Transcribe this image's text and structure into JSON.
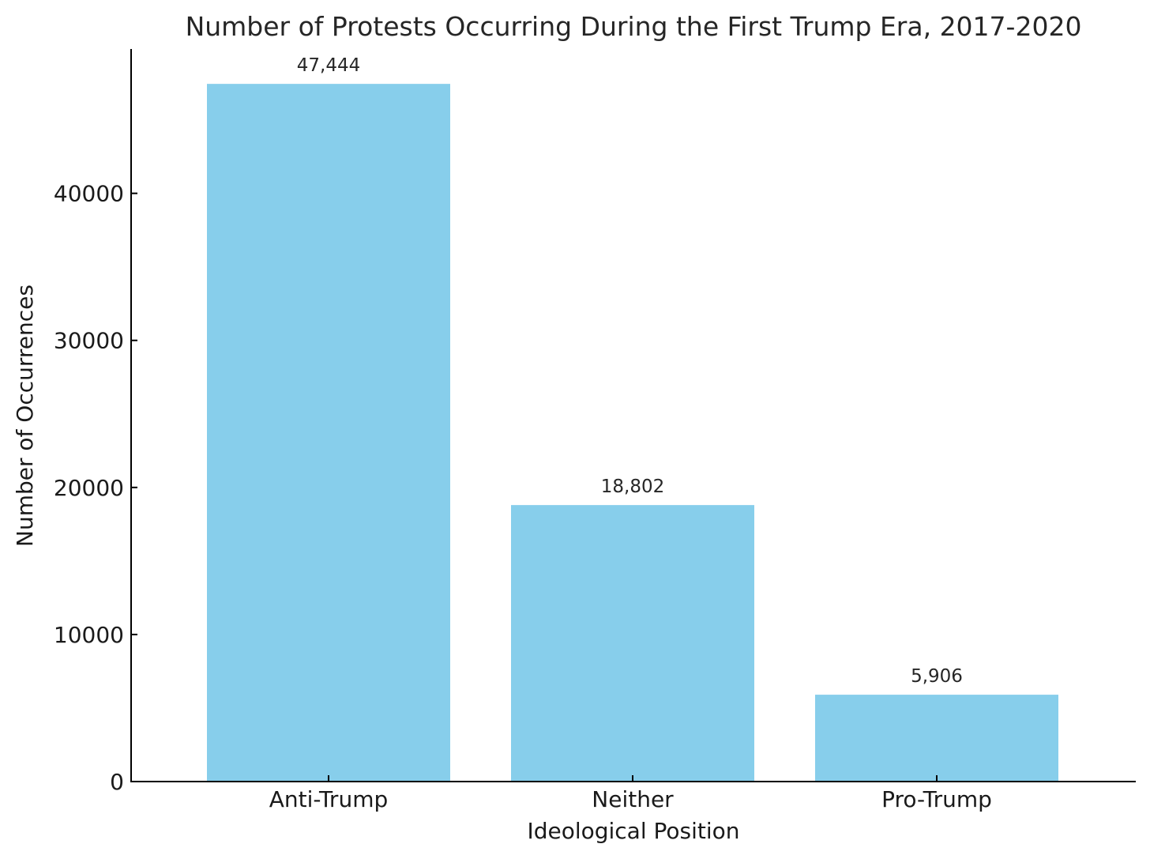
{
  "chart_data": {
    "type": "bar",
    "title": "Number of Protests Occurring During the First Trump Era, 2017-2020",
    "xlabel": "Ideological Position",
    "ylabel": "Number of Occurrences",
    "categories": [
      "Anti-Trump",
      "Neither",
      "Pro-Trump"
    ],
    "values": [
      47444,
      18802,
      5906
    ],
    "value_labels": [
      "47,444",
      "18,802",
      "5,906"
    ],
    "y_ticks": [
      0,
      10000,
      20000,
      30000,
      40000
    ],
    "ylim": [
      0,
      49816
    ],
    "grid": false,
    "legend": "none",
    "colors": {
      "bar": "#87CEEB",
      "axis": "#000000",
      "text": "#262626"
    }
  }
}
